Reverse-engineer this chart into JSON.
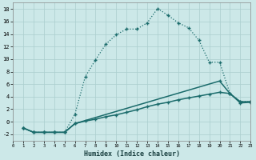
{
  "xlabel": "Humidex (Indice chaleur)",
  "xlim": [
    0,
    23
  ],
  "ylim": [
    -3,
    19
  ],
  "yticks": [
    -2,
    0,
    2,
    4,
    6,
    8,
    10,
    12,
    14,
    16,
    18
  ],
  "xticks": [
    0,
    1,
    2,
    3,
    4,
    5,
    6,
    7,
    8,
    9,
    10,
    11,
    12,
    13,
    14,
    15,
    16,
    17,
    18,
    19,
    20,
    21,
    22,
    23
  ],
  "bg_color": "#cce8e8",
  "grid_color": "#aacece",
  "line_color": "#1a6b6b",
  "line1_x": [
    1,
    2,
    3,
    4,
    5,
    6,
    7,
    8,
    9,
    10,
    11,
    12,
    13,
    14,
    15,
    16,
    17,
    18,
    19,
    20,
    21,
    22,
    23
  ],
  "line1_y": [
    -1,
    -1.7,
    -1.7,
    -1.7,
    -1.7,
    1.2,
    7.2,
    9.9,
    12.4,
    13.9,
    14.8,
    14.8,
    15.8,
    18.1,
    17.0,
    15.8,
    15.0,
    13.0,
    9.5,
    9.5,
    4.5,
    3.2,
    3.2
  ],
  "line2_x": [
    1,
    2,
    3,
    4,
    5,
    6,
    20,
    21,
    22,
    23
  ],
  "line2_y": [
    -1,
    -1.7,
    -1.7,
    -1.7,
    -1.7,
    -0.3,
    6.5,
    4.5,
    3.2,
    3.2
  ],
  "line3_x": [
    1,
    2,
    3,
    4,
    5,
    6,
    7,
    8,
    9,
    10,
    11,
    12,
    13,
    14,
    15,
    16,
    17,
    18,
    19,
    20,
    21,
    22,
    23
  ],
  "line3_y": [
    -1,
    -1.7,
    -1.7,
    -1.7,
    -1.7,
    -0.3,
    0.1,
    0.4,
    0.8,
    1.1,
    1.5,
    1.9,
    2.4,
    2.8,
    3.1,
    3.5,
    3.8,
    4.1,
    4.4,
    4.7,
    4.5,
    3.0,
    3.1
  ]
}
